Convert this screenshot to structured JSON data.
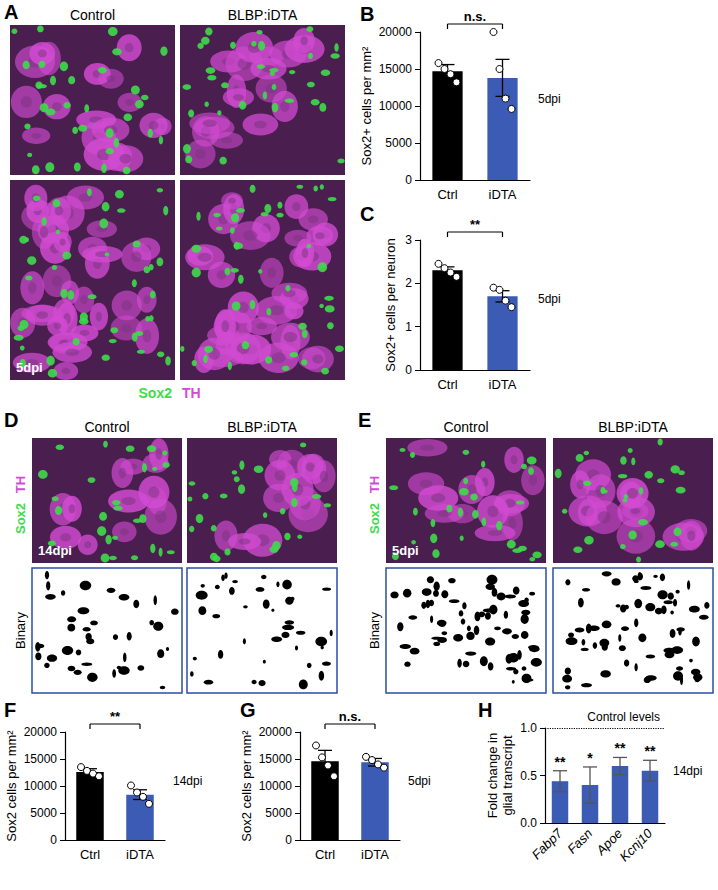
{
  "chart_data": [
    {
      "panel_label": "B",
      "type": "bar",
      "ylabel": "Sox2+ cells per mm²",
      "categories": [
        "Ctrl",
        "iDTA"
      ],
      "values": [
        14700,
        13800
      ],
      "errors": [
        900,
        2500
      ],
      "points": [
        [
          15800,
          15000,
          14300,
          13200
        ],
        [
          20000,
          15000,
          11000,
          9600
        ]
      ],
      "colors": [
        "#000000",
        "#3b5bb5"
      ],
      "ylim": [
        0,
        20000
      ],
      "yticks": [
        0,
        5000,
        10000,
        15000,
        20000
      ],
      "significance": "n.s.",
      "annotation": "5dpi"
    },
    {
      "panel_label": "C",
      "type": "bar",
      "ylabel": "Sox2+ cells per neuron",
      "categories": [
        "Ctrl",
        "iDTA"
      ],
      "values": [
        2.3,
        1.7
      ],
      "errors": [
        0.08,
        0.13
      ],
      "points": [
        [
          2.45,
          2.35,
          2.25,
          2.15
        ],
        [
          1.9,
          1.85,
          1.6,
          1.45
        ]
      ],
      "colors": [
        "#000000",
        "#3b5bb5"
      ],
      "ylim": [
        0,
        3
      ],
      "yticks": [
        0,
        1,
        2,
        3
      ],
      "significance": "**",
      "annotation": "5dpi"
    },
    {
      "panel_label": "F",
      "type": "bar",
      "ylabel": "Sox2 cells per mm²",
      "categories": [
        "Ctrl",
        "iDTA"
      ],
      "values": [
        12600,
        8400
      ],
      "errors": [
        600,
        900
      ],
      "points": [
        [
          13500,
          12800,
          12300,
          11800
        ],
        [
          10100,
          8800,
          8000,
          6700
        ]
      ],
      "colors": [
        "#000000",
        "#3b5bb5"
      ],
      "ylim": [
        0,
        20000
      ],
      "yticks": [
        0,
        5000,
        10000,
        15000,
        20000
      ],
      "significance": "**",
      "annotation": "14dpi"
    },
    {
      "panel_label": "G",
      "type": "bar",
      "ylabel": "Sox2 cells per mm²",
      "categories": [
        "Ctrl",
        "iDTA"
      ],
      "values": [
        14600,
        14400
      ],
      "errors": [
        2000,
        700
      ],
      "points": [
        [
          17500,
          15300,
          13800,
          11800
        ],
        [
          15400,
          14800,
          14000,
          13400
        ]
      ],
      "colors": [
        "#000000",
        "#3b5bb5"
      ],
      "ylim": [
        0,
        20000
      ],
      "yticks": [
        0,
        5000,
        10000,
        15000,
        20000
      ],
      "significance": "n.s.",
      "annotation": "5dpi"
    },
    {
      "panel_label": "H",
      "type": "bar",
      "ylabel": "Fold change in\nglial transcript",
      "categories": [
        "Fabp7",
        "Fasn",
        "Apoe",
        "Kcnj10"
      ],
      "values": [
        0.44,
        0.4,
        0.6,
        0.55
      ],
      "errors": [
        0.11,
        0.19,
        0.09,
        0.11
      ],
      "color": "#3b5bb5",
      "ylim": [
        0,
        1
      ],
      "yticks": [
        {
          "value": 0,
          "label": "0.0"
        },
        0.5,
        {
          "value": 1,
          "label": "1.0"
        }
      ],
      "significance": [
        "**",
        "*",
        "**",
        "**"
      ],
      "reference": {
        "value": 1,
        "label": "Control levels"
      },
      "annotation": "14dpi"
    }
  ],
  "image_panels": [
    {
      "panel_label": "A",
      "columns": [
        "Control",
        "BLBP:iDTA"
      ],
      "corner_text": "5dpi",
      "channels": [
        {
          "text": "Sox2",
          "color": "#3ddc4a"
        },
        {
          "text": "TH",
          "color": "#d24bd2"
        }
      ]
    },
    {
      "panel_label": "D",
      "columns": [
        "Control",
        "BLBP:iDTA"
      ],
      "corner_text": "14dpi",
      "channels": [
        {
          "text": "Sox2",
          "color": "#3ddc4a"
        },
        {
          "text": "TH",
          "color": "#d24bd2"
        }
      ],
      "binary_label": "Binary"
    },
    {
      "panel_label": "E",
      "columns": [
        "Control",
        "BLBP:iDTA"
      ],
      "corner_text": "5dpi",
      "channels": [
        {
          "text": "Sox2",
          "color": "#3ddc4a"
        },
        {
          "text": "TH",
          "color": "#d24bd2"
        }
      ],
      "binary_label": "Binary"
    }
  ]
}
